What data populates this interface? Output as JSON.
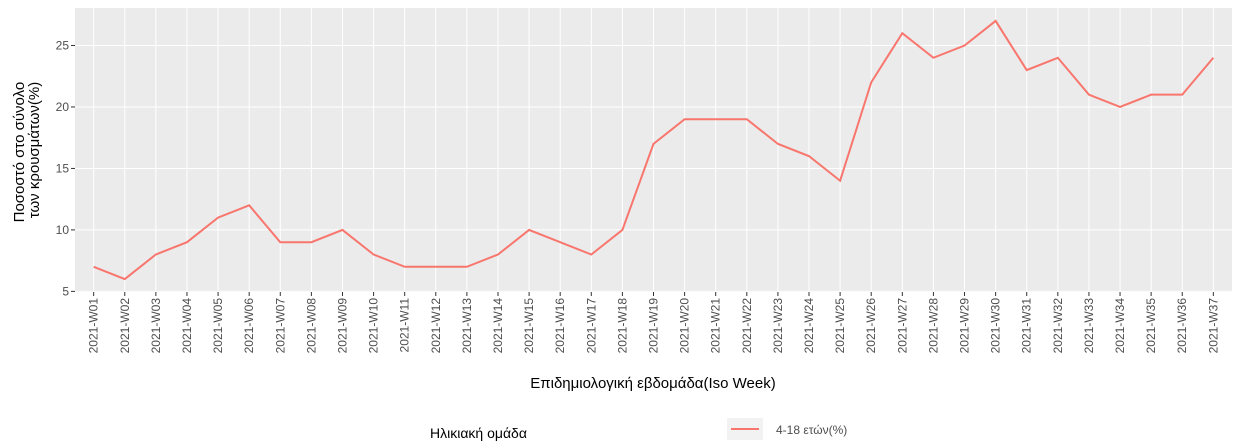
{
  "chart_data": {
    "type": "line",
    "x_label": "Επιδημιολογική εβδομάδα(Iso Week)",
    "y_label": [
      "Ποσοστό στο σύνολο",
      "των κρουσμάτων(%)"
    ],
    "legend_title": "Ηλικιακή ομάδα",
    "legend_position": "bottom",
    "grid": true,
    "categories": [
      "2021-W01",
      "2021-W02",
      "2021-W03",
      "2021-W04",
      "2021-W05",
      "2021-W06",
      "2021-W07",
      "2021-W08",
      "2021-W09",
      "2021-W10",
      "2021-W11",
      "2021-W12",
      "2021-W13",
      "2021-W14",
      "2021-W15",
      "2021-W16",
      "2021-W17",
      "2021-W18",
      "2021-W19",
      "2021-W20",
      "2021-W21",
      "2021-W22",
      "2021-W23",
      "2021-W24",
      "2021-W25",
      "2021-W26",
      "2021-W27",
      "2021-W28",
      "2021-W29",
      "2021-W30",
      "2021-W31",
      "2021-W32",
      "2021-W33",
      "2021-W34",
      "2021-W35",
      "2021-W36",
      "2021-W37"
    ],
    "series": [
      {
        "name": "4-18 ετών(%)",
        "color": "#f8766d",
        "values": [
          7,
          6,
          8,
          9,
          11,
          12,
          9,
          9,
          10,
          8,
          7,
          7,
          7,
          8,
          10,
          9,
          8,
          10,
          17,
          19,
          19,
          19,
          17,
          16,
          14,
          22,
          26,
          24,
          25,
          27,
          23,
          24,
          21,
          20,
          21,
          21,
          24
        ]
      }
    ],
    "ylim": [
      4.95,
      28.05
    ],
    "yticks": [
      5,
      10,
      15,
      20,
      25
    ]
  }
}
